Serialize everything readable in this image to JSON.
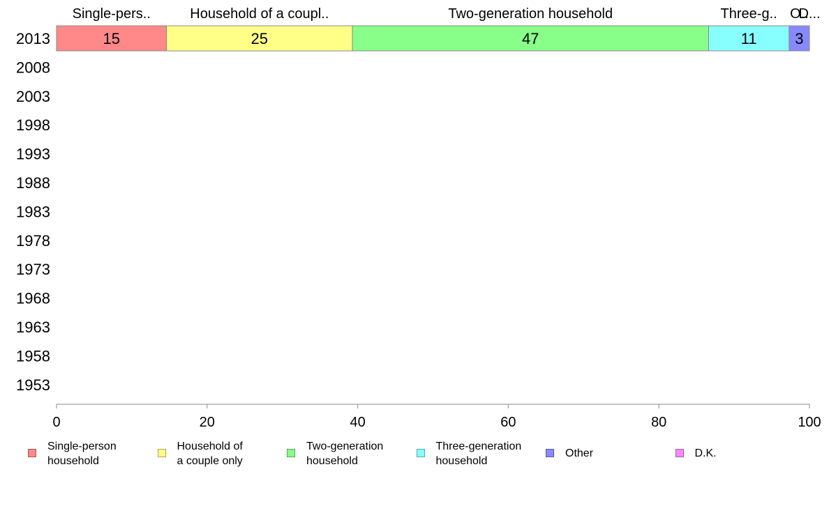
{
  "chart_data": {
    "type": "bar",
    "orientation": "horizontal",
    "stacked": true,
    "categories": [
      "2013",
      "2008",
      "2003",
      "1998",
      "1993",
      "1988",
      "1983",
      "1978",
      "1973",
      "1968",
      "1963",
      "1958",
      "1953"
    ],
    "series": [
      {
        "name": "Single-person household",
        "values": [
          14.6,
          null,
          null,
          null,
          null,
          null,
          null,
          null,
          null,
          null,
          null,
          null,
          null
        ],
        "data_labels": [
          "15"
        ],
        "top_label": "Single-pers..",
        "color": "#ff8888"
      },
      {
        "name": "Household of a couple only",
        "values": [
          24.7,
          null,
          null,
          null,
          null,
          null,
          null,
          null,
          null,
          null,
          null,
          null,
          null
        ],
        "data_labels": [
          "25"
        ],
        "top_label": "Household of a coupl..",
        "color": "#ffff88"
      },
      {
        "name": "Two-generation household",
        "values": [
          47.3,
          null,
          null,
          null,
          null,
          null,
          null,
          null,
          null,
          null,
          null,
          null,
          null
        ],
        "data_labels": [
          "47"
        ],
        "top_label": "Two-generation household",
        "color": "#88ff88"
      },
      {
        "name": "Three-generation household",
        "values": [
          10.7,
          null,
          null,
          null,
          null,
          null,
          null,
          null,
          null,
          null,
          null,
          null,
          null
        ],
        "data_labels": [
          "11"
        ],
        "top_label": "Three-g..",
        "color": "#88ffff"
      },
      {
        "name": "Other",
        "values": [
          2.7,
          null,
          null,
          null,
          null,
          null,
          null,
          null,
          null,
          null,
          null,
          null,
          null
        ],
        "data_labels": [
          "3"
        ],
        "top_label": "O..",
        "color": "#8888ff"
      },
      {
        "name": "D.K.",
        "values": [
          0.0,
          null,
          null,
          null,
          null,
          null,
          null,
          null,
          null,
          null,
          null,
          null,
          null
        ],
        "data_labels": [
          ""
        ],
        "top_label": "D...",
        "color": "#ff88ff"
      }
    ],
    "xlim": [
      0,
      100
    ],
    "xticks": [
      "0",
      "20",
      "40",
      "60",
      "80",
      "100"
    ],
    "title": "",
    "xlabel": "",
    "ylabel": "",
    "grid": false,
    "legend_position": "bottom",
    "legend_labels": [
      "Single-person\nhousehold",
      "Household of\na couple only",
      "Two-generation\nhousehold",
      "Three-generation\nhousehold",
      "Other",
      "D.K."
    ]
  }
}
